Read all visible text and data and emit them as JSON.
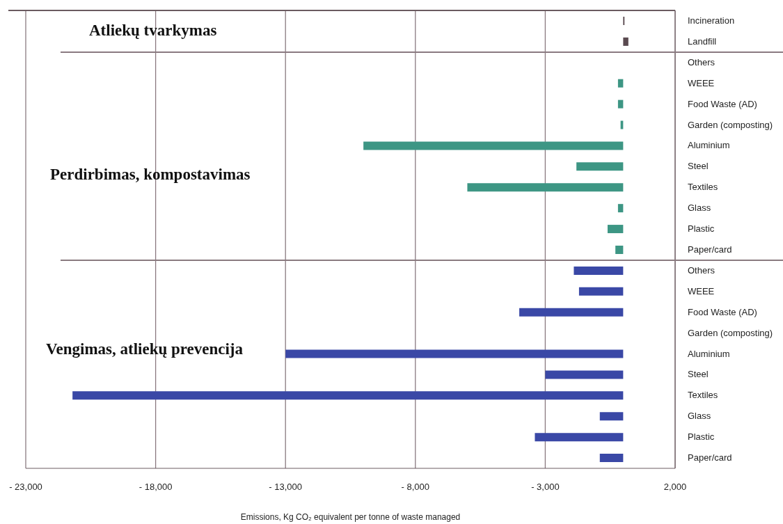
{
  "chart_data": {
    "type": "bar",
    "orientation": "horizontal",
    "categories": [
      "Incineration",
      "Landfill",
      "Others",
      "WEEE",
      "Food Waste (AD)",
      "Garden (composting)",
      "Aluminium",
      "Steel",
      "Textiles",
      "Glass",
      "Plastic",
      "Paper/card",
      "Others",
      "WEEE",
      "Food Waste (AD)",
      "Garden (composting)",
      "Aluminium",
      "Steel",
      "Textiles",
      "Glass",
      "Plastic",
      "Paper/card"
    ],
    "values": [
      50,
      200,
      null,
      -200,
      -200,
      -100,
      -10000,
      -1800,
      -6000,
      -200,
      -600,
      -300,
      -1900,
      -1700,
      -4000,
      null,
      -13000,
      -3000,
      -21200,
      -900,
      -3400,
      -900
    ],
    "colors": [
      "#5a4a50",
      "#5a4a50",
      "#3d9684",
      "#3d9684",
      "#3d9684",
      "#3d9684",
      "#3d9684",
      "#3d9684",
      "#3d9684",
      "#3d9684",
      "#3d9684",
      "#3d9684",
      "#3a48a6",
      "#3a48a6",
      "#3a48a6",
      "#3a48a6",
      "#3a48a6",
      "#3a48a6",
      "#3a48a6",
      "#3a48a6",
      "#3a48a6",
      "#3a48a6"
    ],
    "xlim": [
      -23000,
      2000
    ],
    "xticks": [
      {
        "value": -23000,
        "label": "- 23,000"
      },
      {
        "value": -18000,
        "label": "- 18,000"
      },
      {
        "value": -13000,
        "label": "- 13,000"
      },
      {
        "value": -8000,
        "label": "- 8,000"
      },
      {
        "value": -3000,
        "label": "- 3,000"
      },
      {
        "value": 2000,
        "label": "2,000"
      }
    ],
    "xlabel": "Emissions, Kg CO₂ equivalent per tonne of waste managed",
    "grid": "x",
    "legend": false,
    "annotations": [
      "Atliekų tvarkymas",
      "Perdirbimas, kompostavimas",
      "Vengimas, atliekų prevencija"
    ]
  }
}
